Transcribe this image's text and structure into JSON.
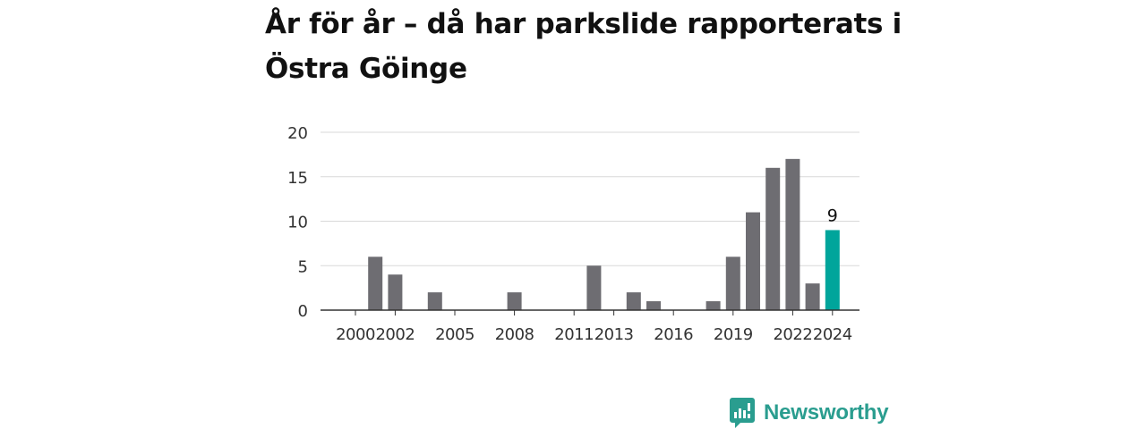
{
  "title": "År för år – då har parkslide rapporterats i Östra Göinge",
  "brand": {
    "name": "Newsworthy",
    "icon": "newsworthy-logo-icon",
    "color": "#2a9d8f"
  },
  "chart_data": {
    "type": "bar",
    "title": "År för år – då har parkslide rapporterats i Östra Göinge",
    "xlabel": "",
    "ylabel": "",
    "ylim": [
      0,
      20
    ],
    "yticks": [
      0,
      5,
      10,
      15,
      20
    ],
    "xticks": [
      2000,
      2002,
      2005,
      2008,
      2011,
      2013,
      2016,
      2019,
      2022,
      2024
    ],
    "grid": true,
    "categories": [
      2000,
      2001,
      2002,
      2003,
      2004,
      2005,
      2006,
      2007,
      2008,
      2009,
      2010,
      2011,
      2012,
      2013,
      2014,
      2015,
      2016,
      2017,
      2018,
      2019,
      2020,
      2021,
      2022,
      2023,
      2024
    ],
    "values": [
      0,
      6,
      4,
      0,
      2,
      0,
      0,
      0,
      2,
      0,
      0,
      0,
      5,
      0,
      2,
      1,
      0,
      0,
      1,
      6,
      11,
      16,
      17,
      3,
      9
    ],
    "bar_color": "#6e6d72",
    "highlight": {
      "category": 2024,
      "label": "9",
      "color": "#00a59b"
    }
  }
}
